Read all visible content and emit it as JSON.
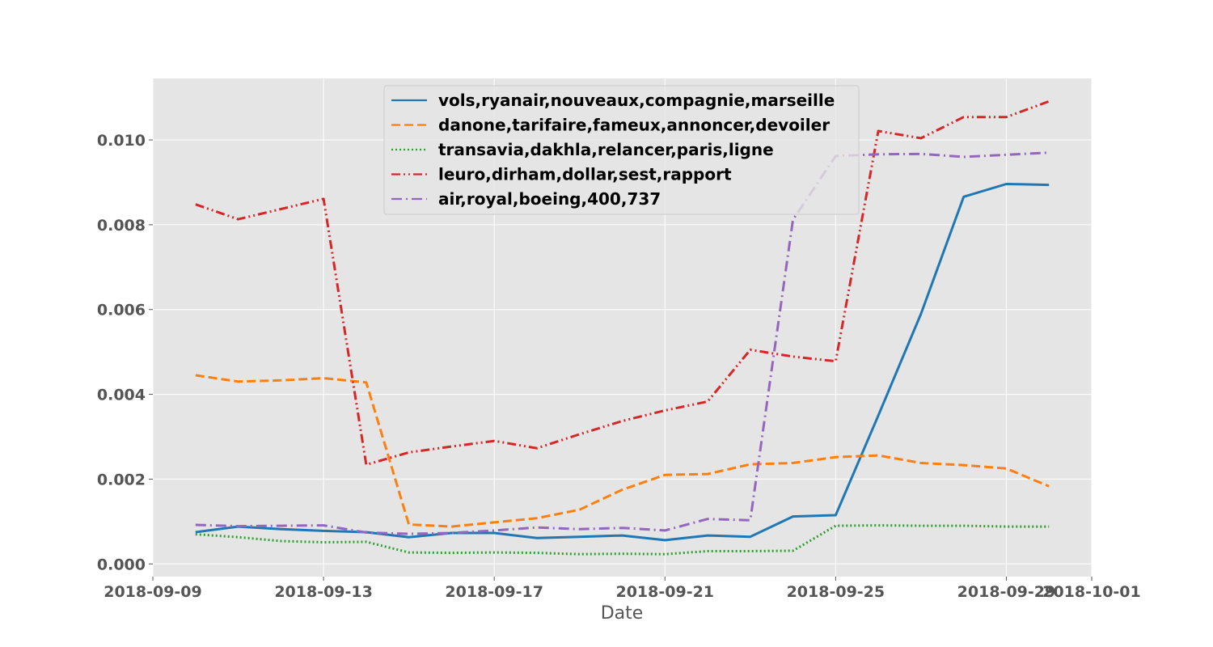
{
  "chart_data": {
    "type": "line",
    "title": "",
    "xlabel": "Date",
    "ylabel": "",
    "x_tick_labels": [
      "2018-09-09",
      "2018-09-13",
      "2018-09-17",
      "2018-09-21",
      "2018-09-25",
      "2018-09-29",
      "2018-10-01"
    ],
    "y_tick_labels": [
      "0.000",
      "0.002",
      "0.004",
      "0.006",
      "0.008",
      "0.010"
    ],
    "xlim": [
      "2018-09-09",
      "2018-10-01"
    ],
    "ylim": [
      -0.0003,
      0.01145
    ],
    "grid": true,
    "legend_position": "top-center",
    "x": [
      "2018-09-10",
      "2018-09-11",
      "2018-09-12",
      "2018-09-13",
      "2018-09-14",
      "2018-09-15",
      "2018-09-16",
      "2018-09-17",
      "2018-09-18",
      "2018-09-19",
      "2018-09-20",
      "2018-09-21",
      "2018-09-22",
      "2018-09-23",
      "2018-09-24",
      "2018-09-25",
      "2018-09-26",
      "2018-09-27",
      "2018-09-28",
      "2018-09-29",
      "2018-09-30"
    ],
    "series": [
      {
        "name": "vols,ryanair,nouveaux,compagnie,marseille",
        "color": "#1f77b4",
        "style": "solid",
        "values": [
          0.00075,
          0.00088,
          0.00082,
          0.00078,
          0.00075,
          0.00063,
          0.00073,
          0.00073,
          0.00061,
          0.00064,
          0.00067,
          0.00056,
          0.00067,
          0.00064,
          0.00112,
          0.00115,
          0.0035,
          0.0059,
          0.00866,
          0.00896,
          0.00894
        ]
      },
      {
        "name": "danone,tarifaire,fameux,annoncer,devoiler",
        "color": "#ff7f0e",
        "style": "dashed",
        "values": [
          0.00445,
          0.0043,
          0.00433,
          0.00438,
          0.00428,
          0.00093,
          0.00088,
          0.00098,
          0.00108,
          0.00128,
          0.00175,
          0.0021,
          0.00212,
          0.00235,
          0.00238,
          0.00252,
          0.00256,
          0.00238,
          0.00233,
          0.00225,
          0.00183
        ]
      },
      {
        "name": "transavia,dakhla,relancer,paris,ligne",
        "color": "#2ca02c",
        "style": "dotted",
        "values": [
          0.0007,
          0.00063,
          0.00054,
          0.00051,
          0.00052,
          0.00027,
          0.00026,
          0.00027,
          0.00026,
          0.00023,
          0.00024,
          0.00023,
          0.0003,
          0.0003,
          0.00031,
          0.0009,
          0.00091,
          0.0009,
          0.0009,
          0.00088,
          0.00088
        ]
      },
      {
        "name": "leuro,dirham,dollar,sest,rapport",
        "color": "#d62728",
        "style": "dashdotdot",
        "values": [
          0.00848,
          0.00813,
          0.00837,
          0.00861,
          0.00234,
          0.00263,
          0.00277,
          0.0029,
          0.00273,
          0.00306,
          0.00337,
          0.00362,
          0.00383,
          0.00505,
          0.00489,
          0.00478,
          0.01021,
          0.01004,
          0.01054,
          0.01054,
          0.01091
        ]
      },
      {
        "name": "air,royal,boeing,400,737",
        "color": "#9467bd",
        "style": "dashdot",
        "values": [
          0.00092,
          0.00089,
          0.0009,
          0.00091,
          0.00074,
          0.00071,
          0.00073,
          0.00079,
          0.00086,
          0.00082,
          0.00085,
          0.00079,
          0.00106,
          0.00103,
          0.00812,
          0.00962,
          0.00966,
          0.00967,
          0.0096,
          0.00965,
          0.0097
        ]
      }
    ]
  }
}
